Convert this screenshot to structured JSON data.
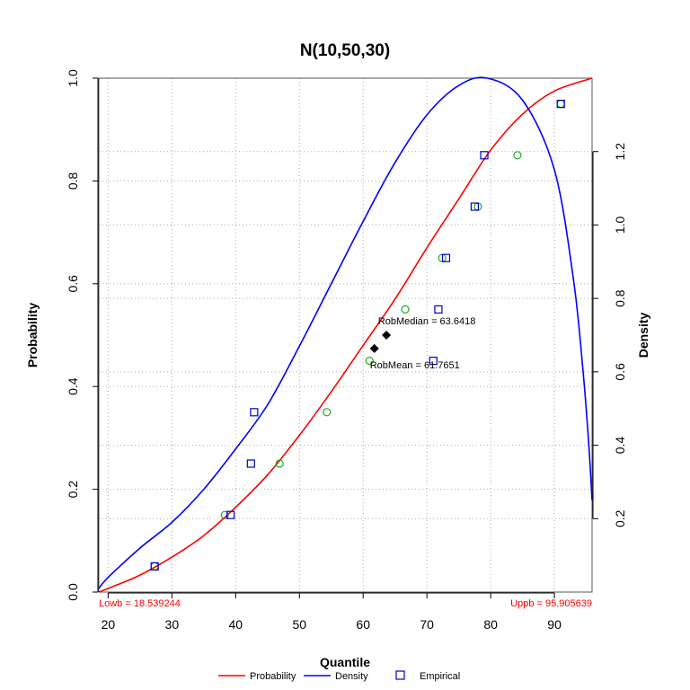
{
  "chart_data": {
    "type": "line",
    "title": "N(10,50,30)",
    "xlabel": "Quantile",
    "ylabel_left": "Probability",
    "ylabel_right": "Density",
    "x_ticks": [
      20,
      30,
      40,
      50,
      60,
      70,
      80,
      90
    ],
    "y_left_ticks": [
      "0.0",
      "0.2",
      "0.4",
      "0.6",
      "0.8",
      "1.0"
    ],
    "y_right_ticks": [
      "0.2",
      "0.4",
      "0.6",
      "0.8",
      "1.0",
      "1.2"
    ],
    "xlim": [
      18.539244,
      95.905639
    ],
    "ylim_left": [
      0,
      1
    ],
    "ylim_right": [
      0,
      1.4
    ],
    "grid": true,
    "colors": {
      "probability": "#ff0000",
      "density": "#0000ff",
      "empirical": "#0000cc",
      "theoretical_points": "#22aa22",
      "markers": "#000000"
    },
    "probability_curve": [
      [
        18.54,
        0.0
      ],
      [
        21,
        0.012
      ],
      [
        25,
        0.033
      ],
      [
        30,
        0.068
      ],
      [
        35,
        0.11
      ],
      [
        40,
        0.165
      ],
      [
        45,
        0.228
      ],
      [
        50,
        0.305
      ],
      [
        55,
        0.39
      ],
      [
        60,
        0.48
      ],
      [
        65,
        0.57
      ],
      [
        70,
        0.67
      ],
      [
        75,
        0.765
      ],
      [
        80,
        0.86
      ],
      [
        85,
        0.93
      ],
      [
        90,
        0.975
      ],
      [
        95.9,
        1.0
      ]
    ],
    "density_curve": [
      [
        18.54,
        0.01
      ],
      [
        20,
        0.04
      ],
      [
        25,
        0.12
      ],
      [
        30,
        0.19
      ],
      [
        35,
        0.28
      ],
      [
        40,
        0.39
      ],
      [
        45,
        0.51
      ],
      [
        50,
        0.67
      ],
      [
        55,
        0.84
      ],
      [
        60,
        1.01
      ],
      [
        65,
        1.17
      ],
      [
        70,
        1.3
      ],
      [
        75,
        1.38
      ],
      [
        79.5,
        1.4
      ],
      [
        85,
        1.34
      ],
      [
        90,
        1.15
      ],
      [
        93,
        0.85
      ],
      [
        94.5,
        0.6
      ],
      [
        95.4,
        0.4
      ],
      [
        95.9,
        0.25
      ]
    ],
    "empirical_points": [
      [
        27.3,
        0.05
      ],
      [
        39.2,
        0.15
      ],
      [
        42.4,
        0.25
      ],
      [
        42.9,
        0.35
      ],
      [
        71.0,
        0.45
      ],
      [
        71.8,
        0.55
      ],
      [
        73.0,
        0.65
      ],
      [
        77.5,
        0.75
      ],
      [
        79.0,
        0.85
      ],
      [
        91.0,
        0.95
      ]
    ],
    "theoretical_points": [
      [
        27.3,
        0.05
      ],
      [
        38.3,
        0.15
      ],
      [
        46.9,
        0.25
      ],
      [
        54.3,
        0.35
      ],
      [
        61.0,
        0.45
      ],
      [
        66.6,
        0.55
      ],
      [
        72.4,
        0.65
      ],
      [
        78.0,
        0.75
      ],
      [
        84.2,
        0.85
      ],
      [
        91.0,
        0.95
      ]
    ],
    "markers": [
      {
        "label": "RobMedian = 63.6418",
        "x": 63.6418,
        "y": 0.5
      },
      {
        "label": "RobMean = 61.7651",
        "x": 61.7651,
        "y": 0.474
      }
    ],
    "annotations": {
      "lowb": "Lowb = 18.539244",
      "uppb": "Uppb = 95.905639"
    },
    "legend": {
      "position": "bottom",
      "items": [
        "Probability",
        "Density",
        "Empirical"
      ]
    }
  }
}
